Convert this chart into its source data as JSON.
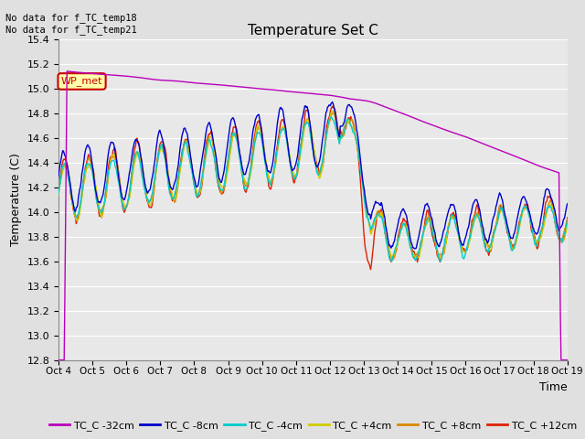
{
  "title": "Temperature Set C",
  "xlabel": "Time",
  "ylabel": "Temperature (C)",
  "ylim": [
    12.8,
    15.4
  ],
  "yticks": [
    12.8,
    13.0,
    13.2,
    13.4,
    13.6,
    13.8,
    14.0,
    14.2,
    14.4,
    14.6,
    14.8,
    15.0,
    15.2,
    15.4
  ],
  "annotation_text": "No data for f_TC_temp18\nNo data for f_TC_temp21",
  "wp_met_label": "WP_met",
  "series_colors": {
    "TC_C -32cm": "#bb00bb",
    "TC_C -8cm": "#0000cc",
    "TC_C -4cm": "#00cccc",
    "TC_C +4cm": "#cccc00",
    "TC_C +8cm": "#dd8800",
    "TC_C +12cm": "#dd2200"
  },
  "x_tick_labels": [
    "Oct 4",
    "Oct 5",
    "Oct 6",
    "Oct 7",
    "Oct 8",
    "Oct 9",
    "Oct 10",
    "Oct 11",
    "Oct 12",
    "Oct 13",
    "Oct 14",
    "Oct 15",
    "Oct 16",
    "Oct 17",
    "Oct 18",
    "Oct 19"
  ],
  "background_color": "#e8e8e8",
  "grid_color": "#ffffff",
  "n_points": 720
}
